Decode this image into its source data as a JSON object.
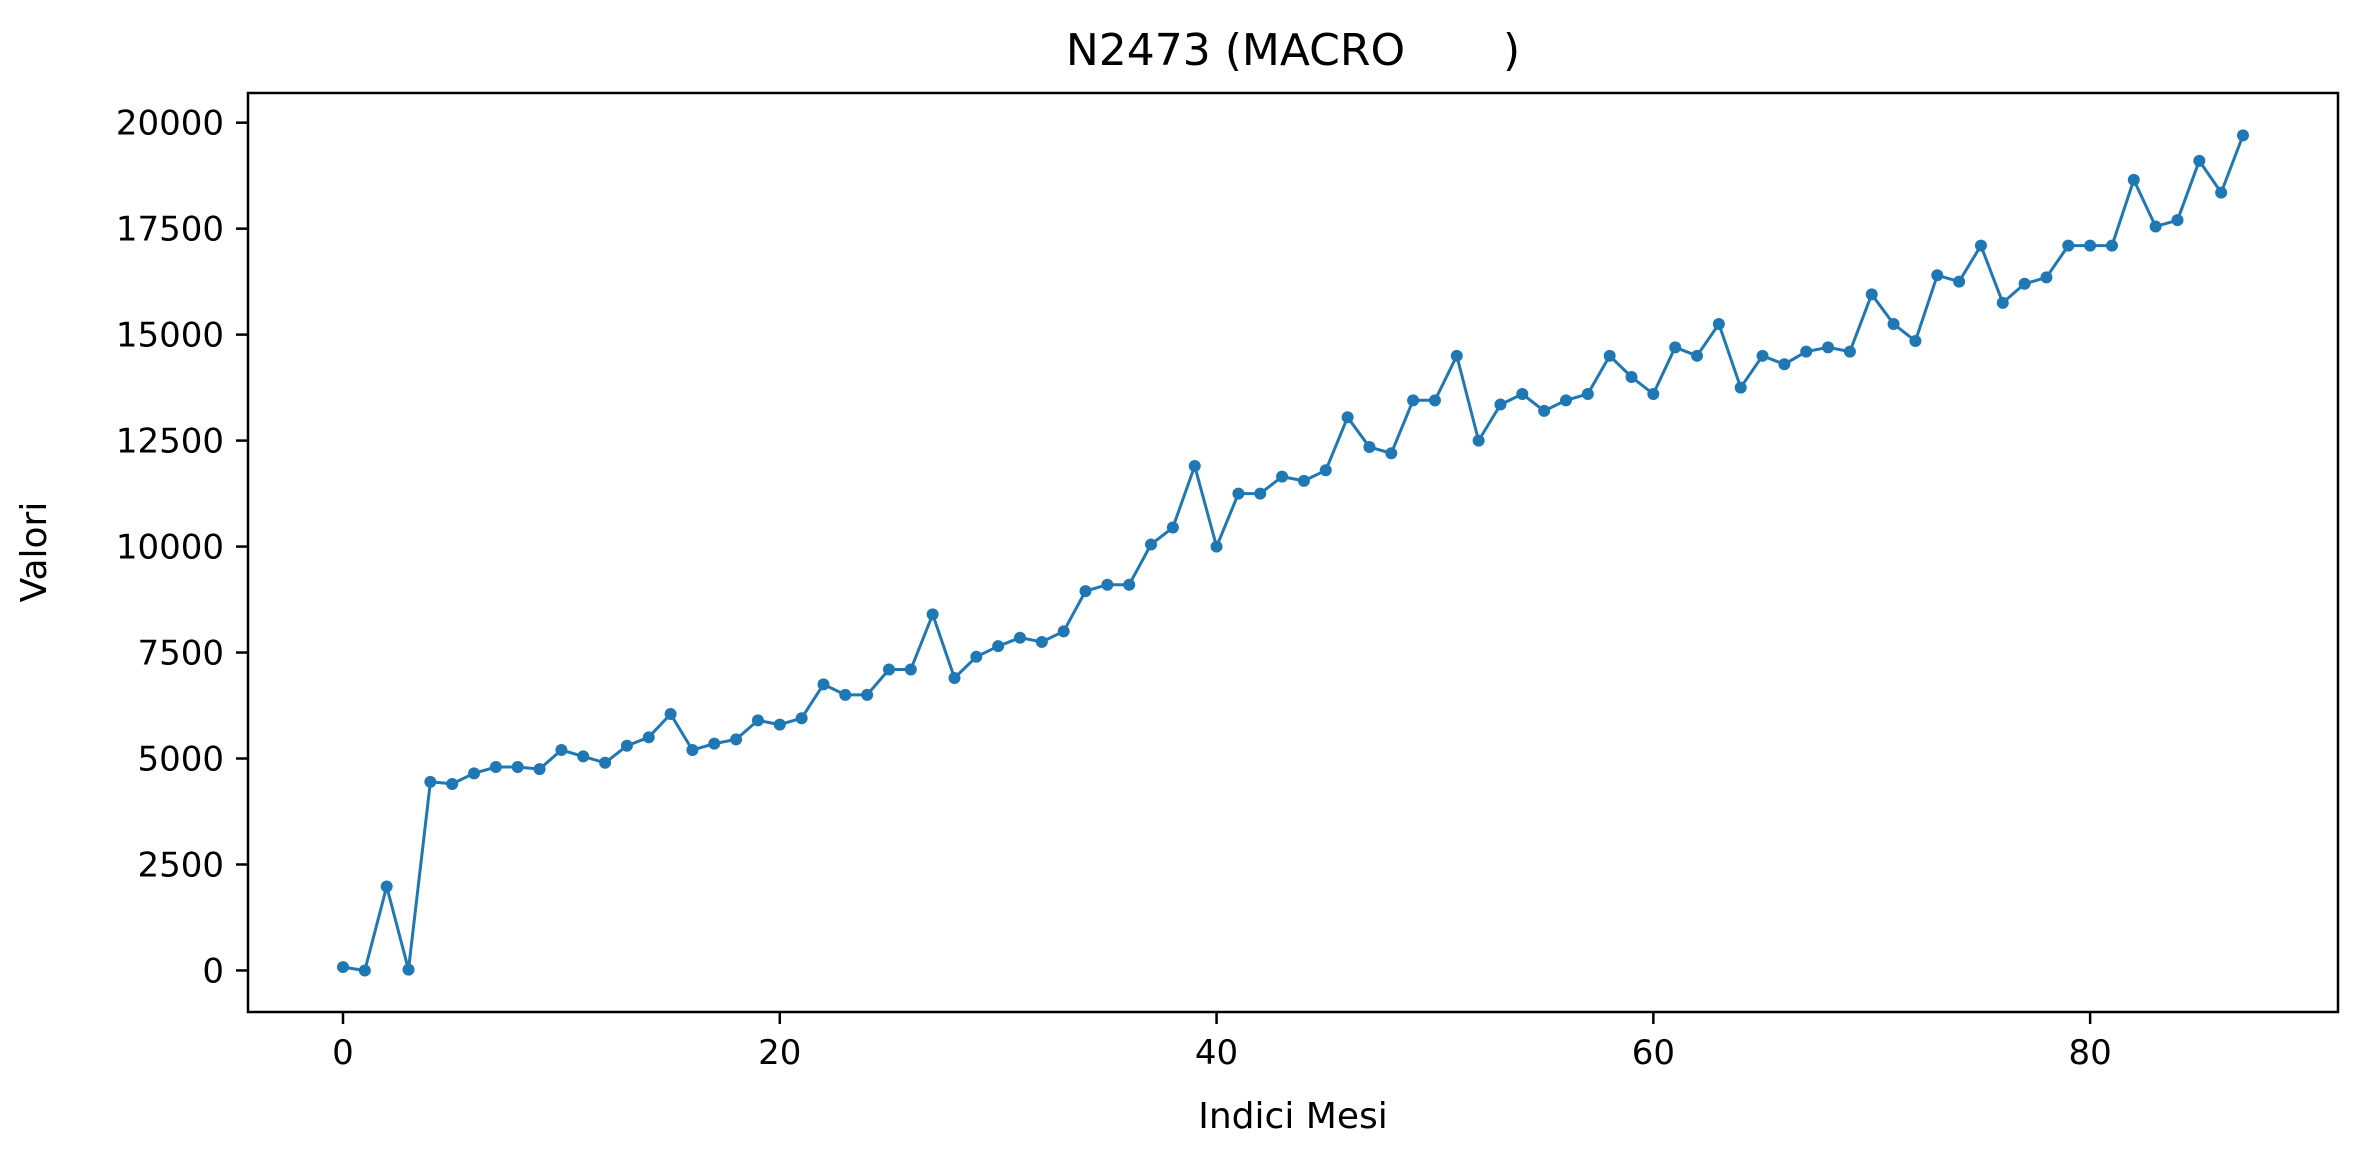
{
  "chart_data": {
    "type": "line",
    "title": "N2473 (MACRO       )",
    "xlabel": "Indici Mesi",
    "ylabel": "Valori",
    "xlim": [
      -4.35,
      91.35
    ],
    "ylim": [
      -980,
      20700
    ],
    "x_ticks": [
      0,
      20,
      40,
      60,
      80
    ],
    "y_ticks": [
      0,
      2500,
      5000,
      7500,
      10000,
      12500,
      15000,
      17500,
      20000
    ],
    "x_tick_labels": [
      "0",
      "20",
      "40",
      "60",
      "80"
    ],
    "y_tick_labels": [
      "0",
      "2500",
      "5000",
      "7500",
      "10000",
      "12500",
      "15000",
      "17500",
      "20000"
    ],
    "grid": false,
    "legend": "none",
    "series": [
      {
        "color": "#1f77b4",
        "marker": "circle",
        "x": [
          0,
          1,
          2,
          3,
          4,
          5,
          6,
          7,
          8,
          9,
          10,
          11,
          12,
          13,
          14,
          15,
          16,
          17,
          18,
          19,
          20,
          21,
          22,
          23,
          24,
          25,
          26,
          27,
          28,
          29,
          30,
          31,
          32,
          33,
          34,
          35,
          36,
          37,
          38,
          39,
          40,
          41,
          42,
          43,
          44,
          45,
          46,
          47,
          48,
          49,
          50,
          51,
          52,
          53,
          54,
          55,
          56,
          57,
          58,
          59,
          60,
          61,
          62,
          63,
          64,
          65,
          66,
          67,
          68,
          69,
          70,
          71,
          72,
          73,
          74,
          75,
          76,
          77,
          78,
          79,
          80,
          81,
          82,
          83,
          84,
          85,
          86,
          87
        ],
        "values": [
          80,
          0,
          1980,
          20,
          4450,
          4400,
          4650,
          4800,
          4800,
          4750,
          5200,
          5050,
          4900,
          5300,
          5500,
          6050,
          5200,
          5350,
          5450,
          5900,
          5800,
          5950,
          6750,
          6500,
          6500,
          7100,
          7100,
          8400,
          6900,
          7400,
          7650,
          7850,
          7750,
          8000,
          8950,
          9100,
          9100,
          10050,
          10450,
          11900,
          10000,
          11250,
          11250,
          11650,
          11550,
          11800,
          13050,
          12350,
          12200,
          13450,
          13450,
          14500,
          12500,
          13350,
          13600,
          13200,
          13450,
          13600,
          14500,
          14000,
          13600,
          14700,
          14500,
          15250,
          13750,
          14500,
          14300,
          14600,
          14700,
          14600,
          15950,
          15250,
          14850,
          16400,
          16250,
          17100,
          15750,
          16200,
          16350,
          17100,
          17100,
          17100,
          18650,
          17550,
          17700,
          19100,
          18350,
          19700
        ]
      }
    ]
  }
}
